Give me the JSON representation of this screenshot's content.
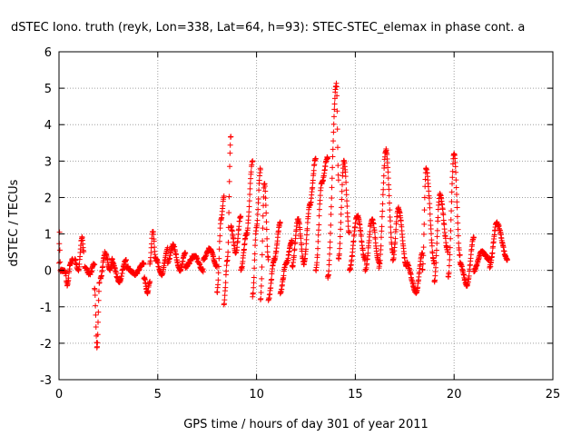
{
  "chart_data": {
    "type": "scatter",
    "title": "dSTEC Iono. truth (reyk, Lon=338, Lat=64, h=93): STEC-STEC_elemax in phase cont. a",
    "xlabel": "GPS time / hours of day 301 of year 2011",
    "ylabel": "dSTEC  / TECUs",
    "xlim": [
      0,
      25
    ],
    "ylim": [
      -3,
      6
    ],
    "x_ticks": [
      "0",
      "5",
      "10",
      "15",
      "20",
      "25"
    ],
    "y_ticks": [
      "-3",
      "-2",
      "-1",
      "0",
      "1",
      "2",
      "3",
      "4",
      "5",
      "6"
    ],
    "grid": true,
    "marker": "+",
    "color": "#ff0000",
    "series": [
      {
        "arcs": [
          {
            "x0": 0.0,
            "x1": 0.25,
            "pts": [
              [
                0,
                0.2
              ],
              [
                0.1,
                1.1
              ],
              [
                0.2,
                0.4
              ],
              [
                0.25,
                0
              ]
            ]
          },
          {
            "x0": 0.3,
            "x1": 0.7,
            "pts": [
              [
                0,
                0
              ],
              [
                0.3,
                -0.4
              ],
              [
                0.7,
                0.2
              ],
              [
                1,
                0.3
              ]
            ]
          },
          {
            "x0": 0.8,
            "x1": 1.25,
            "pts": [
              [
                0,
                0.3
              ],
              [
                0.4,
                0
              ],
              [
                0.8,
                0.9
              ],
              [
                1,
                0.5
              ]
            ]
          },
          {
            "x0": 1.3,
            "x1": 1.8,
            "pts": [
              [
                0,
                0.1
              ],
              [
                0.5,
                -0.1
              ],
              [
                1,
                0.2
              ]
            ]
          },
          {
            "x0": 1.8,
            "x1": 2.05,
            "pts": [
              [
                0,
                -0.5
              ],
              [
                0.5,
                -2.1
              ],
              [
                1,
                -0.3
              ]
            ]
          },
          {
            "x0": 2.1,
            "x1": 2.7,
            "pts": [
              [
                0,
                -0.2
              ],
              [
                0.4,
                0.5
              ],
              [
                0.8,
                0
              ],
              [
                1,
                0.3
              ]
            ]
          },
          {
            "x0": 2.7,
            "x1": 3.4,
            "pts": [
              [
                0,
                0.2
              ],
              [
                0.5,
                -0.3
              ],
              [
                1,
                0.3
              ]
            ]
          },
          {
            "x0": 3.4,
            "x1": 4.3,
            "pts": [
              [
                0,
                0.1
              ],
              [
                0.5,
                -0.1
              ],
              [
                1,
                0.2
              ]
            ]
          },
          {
            "x0": 4.3,
            "x1": 4.6,
            "pts": [
              [
                0,
                -0.2
              ],
              [
                0.6,
                -0.6
              ],
              [
                1,
                -0.3
              ]
            ]
          },
          {
            "x0": 4.6,
            "x1": 4.9,
            "pts": [
              [
                0,
                0.2
              ],
              [
                0.5,
                1.1
              ],
              [
                1,
                0.3
              ]
            ]
          },
          {
            "x0": 4.9,
            "x1": 5.5,
            "pts": [
              [
                0,
                0.3
              ],
              [
                0.5,
                -0.1
              ],
              [
                1,
                0.6
              ]
            ]
          },
          {
            "x0": 5.5,
            "x1": 6.4,
            "pts": [
              [
                0,
                0.2
              ],
              [
                0.3,
                0.7
              ],
              [
                0.7,
                0
              ],
              [
                1,
                0.5
              ]
            ]
          },
          {
            "x0": 6.4,
            "x1": 7.3,
            "pts": [
              [
                0,
                0.1
              ],
              [
                0.5,
                0.4
              ],
              [
                1,
                0
              ]
            ]
          },
          {
            "x0": 7.3,
            "x1": 8.0,
            "pts": [
              [
                0,
                0.3
              ],
              [
                0.5,
                0.6
              ],
              [
                1,
                0.1
              ]
            ]
          },
          {
            "x0": 8.0,
            "x1": 8.35,
            "pts": [
              [
                0,
                -0.6
              ],
              [
                0.6,
                1.4
              ],
              [
                1,
                2.0
              ]
            ]
          },
          {
            "x0": 8.35,
            "x1": 8.7,
            "pts": [
              [
                0,
                -0.9
              ],
              [
                0.5,
                0.3
              ],
              [
                1,
                3.7
              ]
            ]
          },
          {
            "x0": 8.7,
            "x1": 9.2,
            "pts": [
              [
                0,
                1.2
              ],
              [
                0.5,
                0.5
              ],
              [
                1,
                1.5
              ]
            ]
          },
          {
            "x0": 9.2,
            "x1": 9.8,
            "pts": [
              [
                0,
                0
              ],
              [
                0.5,
                1.0
              ],
              [
                1,
                3.0
              ]
            ]
          },
          {
            "x0": 9.8,
            "x1": 10.2,
            "pts": [
              [
                0,
                -0.7
              ],
              [
                0.5,
                1.2
              ],
              [
                1,
                2.8
              ]
            ]
          },
          {
            "x0": 10.2,
            "x1": 10.6,
            "pts": [
              [
                0,
                -0.8
              ],
              [
                0.5,
                2.4
              ],
              [
                1,
                0.3
              ]
            ]
          },
          {
            "x0": 10.6,
            "x1": 11.2,
            "pts": [
              [
                0,
                -0.8
              ],
              [
                0.5,
                0.3
              ],
              [
                1,
                1.3
              ]
            ]
          },
          {
            "x0": 11.2,
            "x1": 11.8,
            "pts": [
              [
                0,
                -0.6
              ],
              [
                0.5,
                0.2
              ],
              [
                1,
                0.8
              ]
            ]
          },
          {
            "x0": 11.8,
            "x1": 12.4,
            "pts": [
              [
                0,
                0.1
              ],
              [
                0.5,
                1.4
              ],
              [
                1,
                0.2
              ]
            ]
          },
          {
            "x0": 12.4,
            "x1": 13.0,
            "pts": [
              [
                0,
                0.2
              ],
              [
                0.5,
                1.8
              ],
              [
                1,
                3.1
              ]
            ]
          },
          {
            "x0": 13.0,
            "x1": 13.6,
            "pts": [
              [
                0,
                0
              ],
              [
                0.5,
                2.4
              ],
              [
                1,
                3.1
              ]
            ]
          },
          {
            "x0": 13.6,
            "x1": 14.15,
            "pts": [
              [
                0,
                -0.2
              ],
              [
                0.8,
                5.1
              ],
              [
                1,
                2.5
              ]
            ]
          },
          {
            "x0": 14.15,
            "x1": 14.7,
            "pts": [
              [
                0,
                0.3
              ],
              [
                0.5,
                3.0
              ],
              [
                1,
                1.0
              ]
            ]
          },
          {
            "x0": 14.7,
            "x1": 15.5,
            "pts": [
              [
                0,
                0
              ],
              [
                0.5,
                1.5
              ],
              [
                1,
                0.3
              ]
            ]
          },
          {
            "x0": 15.5,
            "x1": 16.2,
            "pts": [
              [
                0,
                0
              ],
              [
                0.5,
                1.4
              ],
              [
                1,
                0.2
              ]
            ]
          },
          {
            "x0": 16.2,
            "x1": 16.9,
            "pts": [
              [
                0,
                0.1
              ],
              [
                0.5,
                3.3
              ],
              [
                1,
                0.5
              ]
            ]
          },
          {
            "x0": 16.9,
            "x1": 17.6,
            "pts": [
              [
                0,
                0.3
              ],
              [
                0.4,
                1.7
              ],
              [
                1,
                0.1
              ]
            ]
          },
          {
            "x0": 17.6,
            "x1": 18.4,
            "pts": [
              [
                0,
                0.2
              ],
              [
                0.6,
                -0.6
              ],
              [
                1,
                0.5
              ]
            ]
          },
          {
            "x0": 18.4,
            "x1": 19.0,
            "pts": [
              [
                0,
                0
              ],
              [
                0.3,
                2.8
              ],
              [
                1,
                0.2
              ]
            ]
          },
          {
            "x0": 19.0,
            "x1": 19.7,
            "pts": [
              [
                0,
                -0.3
              ],
              [
                0.4,
                2.1
              ],
              [
                1,
                0.5
              ]
            ]
          },
          {
            "x0": 19.7,
            "x1": 20.3,
            "pts": [
              [
                0,
                -0.2
              ],
              [
                0.5,
                3.2
              ],
              [
                1,
                0.4
              ]
            ]
          },
          {
            "x0": 20.3,
            "x1": 21.0,
            "pts": [
              [
                0,
                0.2
              ],
              [
                0.5,
                -0.4
              ],
              [
                1,
                0.9
              ]
            ]
          },
          {
            "x0": 21.0,
            "x1": 21.8,
            "pts": [
              [
                0,
                0
              ],
              [
                0.5,
                0.5
              ],
              [
                1,
                0.3
              ]
            ]
          },
          {
            "x0": 21.8,
            "x1": 22.7,
            "pts": [
              [
                0,
                0.1
              ],
              [
                0.4,
                1.3
              ],
              [
                1,
                0.3
              ]
            ]
          }
        ]
      }
    ]
  }
}
